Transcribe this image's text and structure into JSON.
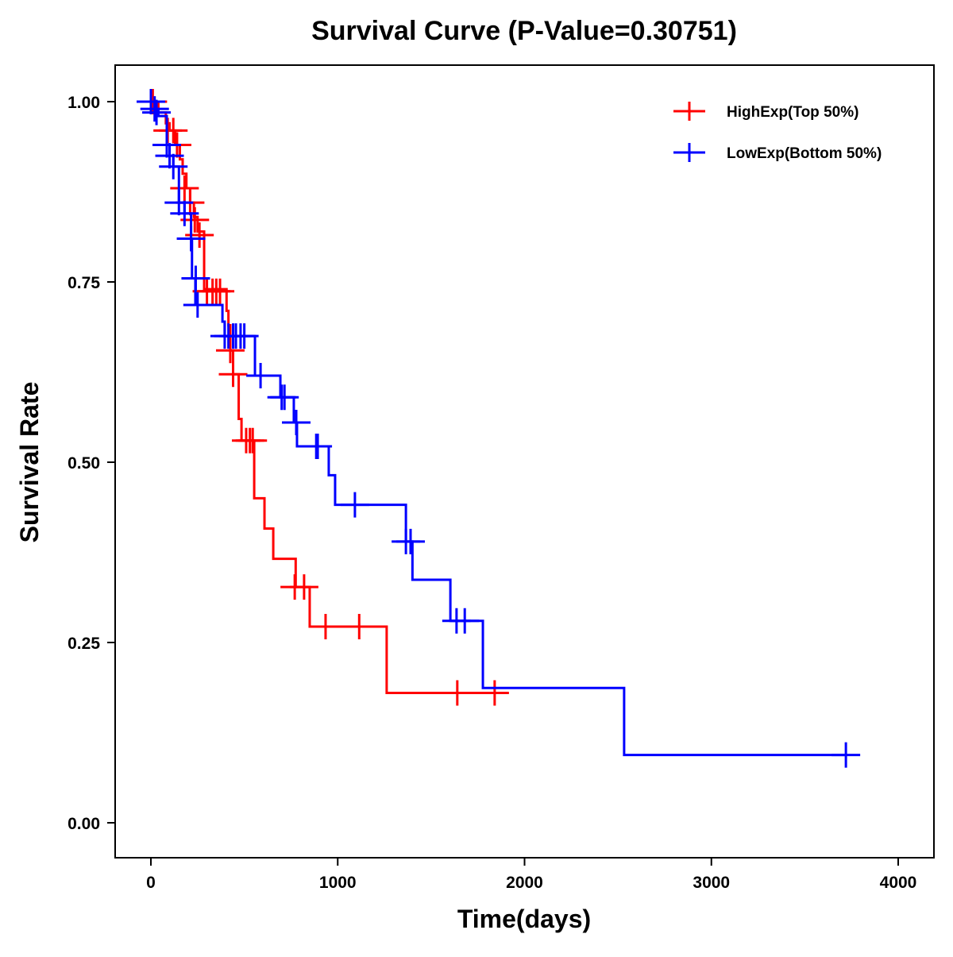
{
  "chart_data": {
    "type": "line",
    "title": "Survival Curve (P-Value=0.30751)",
    "xlabel": "Time(days)",
    "ylabel": "Survival Rate",
    "xlim": [
      -200,
      4200
    ],
    "ylim": [
      -0.05,
      1.05
    ],
    "xticks": [
      0,
      1000,
      2000,
      3000,
      4000
    ],
    "xtick_labels": [
      "0",
      "1000",
      "2000",
      "3000",
      "4000"
    ],
    "yticks": [
      0,
      0.25,
      0.5,
      0.75,
      1.0
    ],
    "ytick_labels": [
      "0.00",
      "0.25",
      "0.50",
      "0.75",
      "1.00"
    ],
    "grid": false,
    "legend_position": "top-right",
    "series": [
      {
        "name": "HighExp(Top 50%)",
        "color": "#ff0000",
        "steps": [
          [
            0,
            1.0
          ],
          [
            40,
            0.985
          ],
          [
            80,
            0.97
          ],
          [
            100,
            0.96
          ],
          [
            130,
            0.94
          ],
          [
            155,
            0.92
          ],
          [
            170,
            0.9
          ],
          [
            190,
            0.88
          ],
          [
            210,
            0.86
          ],
          [
            230,
            0.84
          ],
          [
            250,
            0.82
          ],
          [
            285,
            0.74
          ],
          [
            405,
            0.71
          ],
          [
            415,
            0.69
          ],
          [
            425,
            0.655
          ],
          [
            440,
            0.622
          ],
          [
            470,
            0.56
          ],
          [
            485,
            0.53
          ],
          [
            553,
            0.45
          ],
          [
            608,
            0.408
          ],
          [
            655,
            0.366
          ],
          [
            775,
            0.327
          ],
          [
            850,
            0.272
          ],
          [
            1262,
            0.18
          ]
        ],
        "end": 1870,
        "censored": [
          [
            10,
            1.0
          ],
          [
            90,
            0.96
          ],
          [
            120,
            0.96
          ],
          [
            140,
            0.94
          ],
          [
            180,
            0.88
          ],
          [
            210,
            0.86
          ],
          [
            235,
            0.836
          ],
          [
            260,
            0.815
          ],
          [
            300,
            0.737
          ],
          [
            330,
            0.737
          ],
          [
            350,
            0.737
          ],
          [
            370,
            0.737
          ],
          [
            425,
            0.655
          ],
          [
            440,
            0.622
          ],
          [
            510,
            0.53
          ],
          [
            530,
            0.53
          ],
          [
            545,
            0.53
          ],
          [
            770,
            0.327
          ],
          [
            820,
            0.327
          ],
          [
            935,
            0.272
          ],
          [
            1115,
            0.272
          ],
          [
            1640,
            0.18
          ],
          [
            1840,
            0.18
          ]
        ]
      },
      {
        "name": "LowExp(Bottom 50%)",
        "color": "#0000ff",
        "steps": [
          [
            0,
            1.0
          ],
          [
            20,
            0.99
          ],
          [
            40,
            0.98
          ],
          [
            85,
            0.94
          ],
          [
            100,
            0.925
          ],
          [
            120,
            0.91
          ],
          [
            150,
            0.86
          ],
          [
            180,
            0.845
          ],
          [
            215,
            0.81
          ],
          [
            220,
            0.755
          ],
          [
            238,
            0.718
          ],
          [
            383,
            0.695
          ],
          [
            395,
            0.675
          ],
          [
            557,
            0.62
          ],
          [
            693,
            0.59
          ],
          [
            765,
            0.555
          ],
          [
            782,
            0.522
          ],
          [
            952,
            0.482
          ],
          [
            986,
            0.441
          ],
          [
            1365,
            0.39
          ],
          [
            1400,
            0.337
          ],
          [
            1603,
            0.28
          ],
          [
            1777,
            0.187
          ],
          [
            2533,
            0.094
          ]
        ],
        "end": 3720,
        "censored": [
          [
            0,
            1.0
          ],
          [
            20,
            0.99
          ],
          [
            30,
            0.985
          ],
          [
            85,
            0.94
          ],
          [
            100,
            0.925
          ],
          [
            120,
            0.91
          ],
          [
            150,
            0.86
          ],
          [
            180,
            0.845
          ],
          [
            215,
            0.81
          ],
          [
            240,
            0.755
          ],
          [
            250,
            0.718
          ],
          [
            395,
            0.675
          ],
          [
            415,
            0.675
          ],
          [
            440,
            0.675
          ],
          [
            455,
            0.675
          ],
          [
            480,
            0.675
          ],
          [
            500,
            0.675
          ],
          [
            587,
            0.62
          ],
          [
            700,
            0.59
          ],
          [
            715,
            0.59
          ],
          [
            778,
            0.555
          ],
          [
            885,
            0.522
          ],
          [
            893,
            0.522
          ],
          [
            1092,
            0.441
          ],
          [
            1365,
            0.39
          ],
          [
            1390,
            0.39
          ],
          [
            1636,
            0.28
          ],
          [
            1680,
            0.28
          ],
          [
            3720,
            0.094
          ]
        ]
      }
    ]
  }
}
